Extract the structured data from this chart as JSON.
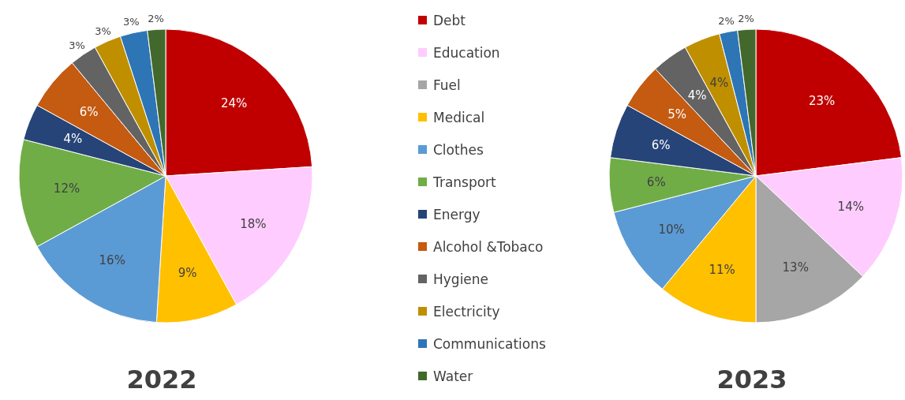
{
  "chart_data": [
    {
      "type": "pie",
      "title": "2022",
      "legend": "right",
      "categories": [
        "Debt",
        "Education",
        "Fuel",
        "Medical",
        "Clothes",
        "Transport",
        "Energy",
        "Alcohol &Tobaco",
        "Hygiene",
        "Electricity",
        "Communications",
        "Water"
      ],
      "values": [
        24,
        18,
        0,
        9,
        16,
        12,
        4,
        6,
        3,
        3,
        3,
        2
      ],
      "value_labels": [
        "24%",
        "18%",
        null,
        "9%",
        "16%",
        "12%",
        "4%",
        "6%",
        "3%",
        "3%",
        "3%",
        "2%"
      ],
      "colors": [
        "#c00000",
        "#ffccff",
        "#a6a6a6",
        "#ffc000",
        "#5b9bd5",
        "#70ad47",
        "#264478",
        "#c55a11",
        "#636363",
        "#bf8f00",
        "#2e75b6",
        "#43682b"
      ]
    },
    {
      "type": "pie",
      "title": "2023",
      "categories": [
        null,
        null,
        null,
        null,
        null,
        null,
        null,
        null,
        null,
        null,
        null,
        null
      ],
      "values": [
        23,
        14,
        13,
        11,
        10,
        6,
        6,
        5,
        4,
        4,
        2,
        2
      ],
      "value_labels": [
        "23%",
        "14%",
        "13%",
        "11%",
        "10%",
        "6%",
        "6%",
        "5%",
        "4%",
        "4%",
        "2%",
        "2%"
      ],
      "colors": [
        "#c00000",
        "#ffccff",
        "#a6a6a6",
        "#ffc000",
        "#5b9bd5",
        "#70ad47",
        "#264478",
        "#c55a11",
        "#636363",
        "#bf8f00",
        "#2e75b6",
        "#43682b"
      ]
    }
  ]
}
